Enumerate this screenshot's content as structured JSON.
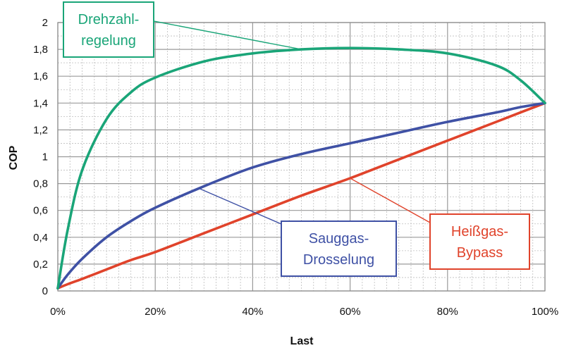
{
  "chart_data": {
    "type": "line",
    "xlabel": "Last",
    "ylabel": "COP",
    "xlim": [
      0,
      100
    ],
    "ylim": [
      0,
      2
    ],
    "x_ticks": [
      "0%",
      "20%",
      "40%",
      "60%",
      "80%",
      "100%"
    ],
    "y_ticks": [
      "0",
      "0,2",
      "0,4",
      "0,6",
      "0,8",
      "1",
      "1,2",
      "1,4",
      "1,6",
      "1,8",
      "2"
    ],
    "grid": true,
    "x": [
      0,
      2,
      5,
      10,
      15,
      20,
      30,
      40,
      50,
      60,
      70,
      80,
      90,
      95,
      100
    ],
    "series": [
      {
        "name": "Drehzahlregelung",
        "color": "#1aa578",
        "values": [
          0.02,
          0.45,
          0.9,
          1.28,
          1.48,
          1.59,
          1.71,
          1.77,
          1.8,
          1.81,
          1.8,
          1.77,
          1.68,
          1.57,
          1.4
        ]
      },
      {
        "name": "Sauggas-Drosselung",
        "color": "#3f51a5",
        "values": [
          0.02,
          0.12,
          0.24,
          0.4,
          0.52,
          0.62,
          0.78,
          0.92,
          1.02,
          1.1,
          1.18,
          1.26,
          1.33,
          1.37,
          1.4
        ]
      },
      {
        "name": "Heißgas-Bypass",
        "color": "#e0432b",
        "values": [
          0.02,
          0.05,
          0.09,
          0.16,
          0.23,
          0.29,
          0.43,
          0.57,
          0.71,
          0.84,
          0.98,
          1.12,
          1.26,
          1.33,
          1.4
        ]
      }
    ],
    "annotations": [
      {
        "series": 0,
        "label_lines": [
          "Drehzahl-",
          "regelung"
        ],
        "color": "#1aa578",
        "anchor_x": 50
      },
      {
        "series": 1,
        "label_lines": [
          "Sauggas-",
          "Drosselung"
        ],
        "color": "#3f51a5",
        "anchor_x": 29
      },
      {
        "series": 2,
        "label_lines": [
          "Heißgas-",
          "Bypass"
        ],
        "color": "#e0432b",
        "anchor_x": 60
      }
    ]
  }
}
